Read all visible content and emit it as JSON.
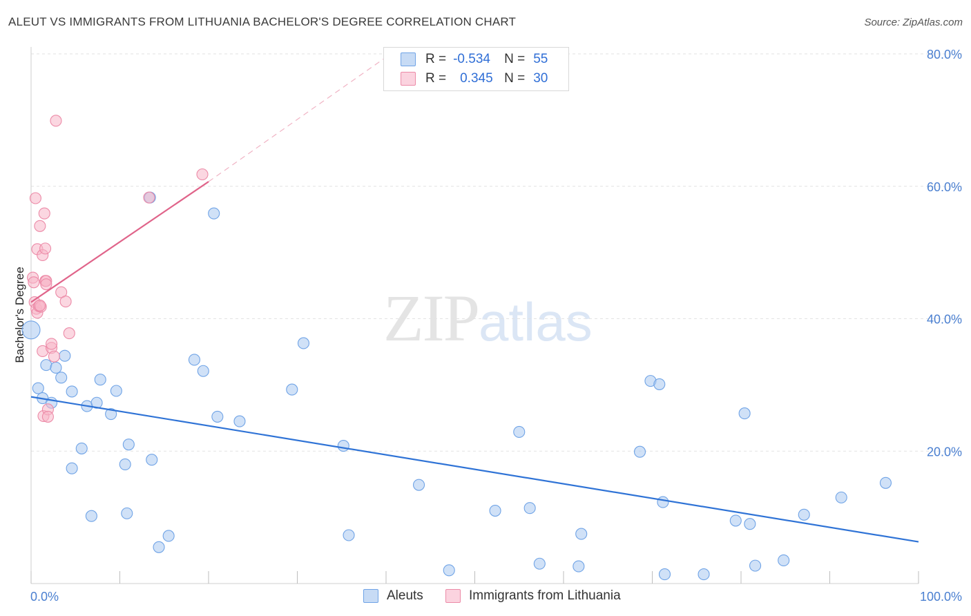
{
  "title": "ALEUT VS IMMIGRANTS FROM LITHUANIA BACHELOR'S DEGREE CORRELATION CHART",
  "source": "Source: ZipAtlas.com",
  "watermark": {
    "zip": "ZIP",
    "atlas": "atlas"
  },
  "legend": {
    "rows": [
      {
        "r_label": "R =",
        "r_value": "-0.534",
        "n_label": "N =",
        "n_value": "55",
        "color": "#a9c8f0"
      },
      {
        "r_label": "R =",
        "r_value": "0.345",
        "n_label": "N =",
        "n_value": "30",
        "color": "#f7b6c8"
      }
    ]
  },
  "bottom_legend": {
    "items": [
      {
        "label": "Aleuts",
        "color": "#a9c8f0"
      },
      {
        "label": "Immigrants from Lithuania",
        "color": "#f7b6c8"
      }
    ]
  },
  "chart_data": {
    "type": "scatter",
    "title": "ALEUT VS IMMIGRANTS FROM LITHUANIA BACHELOR'S DEGREE CORRELATION CHART",
    "xlabel": "",
    "ylabel": "Bachelor's Degree",
    "xlim": [
      0,
      100
    ],
    "ylim": [
      0,
      80
    ],
    "x_tick_labels": [
      "0.0%",
      "100.0%"
    ],
    "y_ticks": [
      20,
      40,
      60,
      80
    ],
    "y_tick_labels": [
      "20.0%",
      "40.0%",
      "60.0%",
      "80.0%"
    ],
    "grid": true,
    "legend_position": "top-center",
    "series": [
      {
        "name": "Aleuts",
        "color": "#6fa3e6",
        "fill": "#a9c8f0",
        "points": [
          [
            0.0,
            38.3
          ],
          [
            0.8,
            29.5
          ],
          [
            1.3,
            28.0
          ],
          [
            1.7,
            33.0
          ],
          [
            2.3,
            27.3
          ],
          [
            2.8,
            32.6
          ],
          [
            3.4,
            31.1
          ],
          [
            3.8,
            34.4
          ],
          [
            4.6,
            29.0
          ],
          [
            4.6,
            17.4
          ],
          [
            5.7,
            20.4
          ],
          [
            6.3,
            26.8
          ],
          [
            6.8,
            10.2
          ],
          [
            7.4,
            27.3
          ],
          [
            7.8,
            30.8
          ],
          [
            9.0,
            25.6
          ],
          [
            9.6,
            29.1
          ],
          [
            10.6,
            18.0
          ],
          [
            10.8,
            10.6
          ],
          [
            11.0,
            21.0
          ],
          [
            13.4,
            58.3
          ],
          [
            13.6,
            18.7
          ],
          [
            14.4,
            5.5
          ],
          [
            15.5,
            7.2
          ],
          [
            18.4,
            33.8
          ],
          [
            19.4,
            32.1
          ],
          [
            20.6,
            55.9
          ],
          [
            21.0,
            25.2
          ],
          [
            23.5,
            24.5
          ],
          [
            29.4,
            29.3
          ],
          [
            30.7,
            36.3
          ],
          [
            35.2,
            20.8
          ],
          [
            35.8,
            7.3
          ],
          [
            43.7,
            14.9
          ],
          [
            47.1,
            2.0
          ],
          [
            52.3,
            11.0
          ],
          [
            55.0,
            22.9
          ],
          [
            56.2,
            11.4
          ],
          [
            57.3,
            3.0
          ],
          [
            61.7,
            2.6
          ],
          [
            62.0,
            7.5
          ],
          [
            68.6,
            19.9
          ],
          [
            69.8,
            30.6
          ],
          [
            70.8,
            30.1
          ],
          [
            71.2,
            12.3
          ],
          [
            71.4,
            1.4
          ],
          [
            75.8,
            1.4
          ],
          [
            79.4,
            9.5
          ],
          [
            80.4,
            25.7
          ],
          [
            81.0,
            9.0
          ],
          [
            81.6,
            2.7
          ],
          [
            84.8,
            3.5
          ],
          [
            87.1,
            10.4
          ],
          [
            91.3,
            13.0
          ],
          [
            96.3,
            15.2
          ]
        ],
        "trendline": {
          "from": [
            0,
            28.2
          ],
          "to": [
            100,
            6.3
          ]
        }
      },
      {
        "name": "Immigrants from Lithuania",
        "color": "#ec8aa7",
        "fill": "#f7b6c8",
        "points": [
          [
            0.2,
            46.2
          ],
          [
            0.3,
            45.5
          ],
          [
            0.4,
            42.5
          ],
          [
            0.5,
            58.2
          ],
          [
            0.6,
            41.5
          ],
          [
            0.7,
            40.9
          ],
          [
            0.7,
            50.5
          ],
          [
            0.9,
            41.9
          ],
          [
            1.0,
            54.0
          ],
          [
            1.1,
            41.8
          ],
          [
            1.3,
            49.6
          ],
          [
            1.3,
            35.1
          ],
          [
            1.4,
            25.3
          ],
          [
            1.5,
            55.9
          ],
          [
            1.6,
            50.6
          ],
          [
            1.6,
            45.7
          ],
          [
            1.7,
            45.7
          ],
          [
            1.7,
            45.2
          ],
          [
            1.9,
            26.3
          ],
          [
            1.9,
            25.2
          ],
          [
            2.3,
            35.6
          ],
          [
            2.3,
            36.2
          ],
          [
            2.6,
            34.3
          ],
          [
            2.8,
            69.9
          ],
          [
            3.4,
            44.0
          ],
          [
            3.9,
            42.6
          ],
          [
            4.3,
            37.8
          ],
          [
            13.3,
            58.3
          ],
          [
            19.3,
            61.8
          ],
          [
            1.0,
            42.0
          ]
        ],
        "trendline": {
          "from": [
            0,
            42.5
          ],
          "to": [
            20,
            60.7
          ]
        },
        "trendline_dashed_extension": {
          "from": [
            20,
            60.7
          ],
          "to": [
            40,
            79.5
          ]
        }
      }
    ]
  }
}
